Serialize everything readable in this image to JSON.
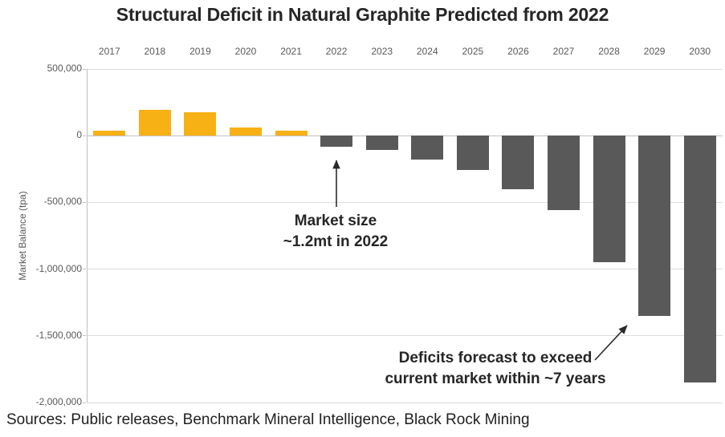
{
  "title": "Structural Deficit in Natural Graphite Predicted from 2022",
  "y_axis_title": "Market Balance (tpa)",
  "source_note": "Sources: Public releases, Benchmark Mineral Intelligence, Black Rock Mining",
  "annotations": {
    "market_size": {
      "line1": "Market size",
      "line2": "~1.2mt in 2022"
    },
    "deficit_forecast": {
      "line1": "Deficits forecast to exceed",
      "line2": "current market within ~7 years"
    }
  },
  "colors": {
    "positive_bar": "#F7B114",
    "negative_bar": "#595959",
    "gridline": "#DCDCDC",
    "zero_line": "#C0C0C0",
    "axis_line": "#C0C0C0",
    "tick_text": "#595959",
    "title_text": "#262626",
    "annotation_text": "#262626",
    "arrow": "#2B2B2B"
  },
  "chart_data": {
    "type": "bar",
    "title": "Structural Deficit in Natural Graphite Predicted from 2022",
    "xlabel": "",
    "ylabel": "Market Balance (tpa)",
    "x_axis_position": "top",
    "categories": [
      "2017",
      "2018",
      "2019",
      "2020",
      "2021",
      "2022",
      "2023",
      "2024",
      "2025",
      "2026",
      "2027",
      "2028",
      "2029",
      "2030"
    ],
    "values": [
      40000,
      195000,
      175000,
      60000,
      35000,
      -85000,
      -110000,
      -180000,
      -260000,
      -400000,
      -560000,
      -950000,
      -1350000,
      -1850000
    ],
    "ylim": [
      -2000000,
      500000
    ],
    "yticks": [
      500000,
      0,
      -500000,
      -1000000,
      -1500000,
      -2000000
    ],
    "ytick_labels": [
      "500,000",
      "0",
      "-500,000",
      "-1,000,000",
      "-1,500,000",
      "-2,000,000"
    ],
    "grid": true,
    "legend": false,
    "series_color_rule": "positive values gold, negative values dark gray"
  }
}
